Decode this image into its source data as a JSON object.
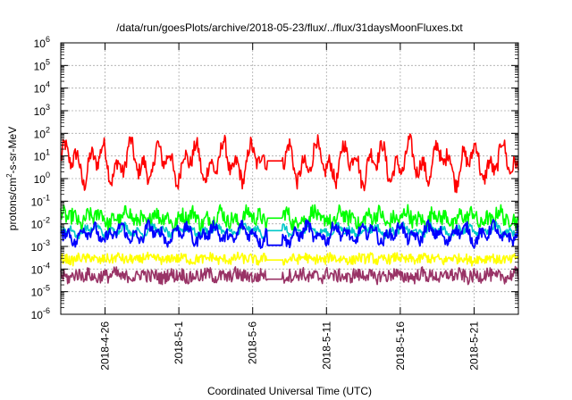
{
  "chart_data": {
    "type": "line",
    "title": "/data/run/goesPlots/archive/2018-05-23/flux/../flux/31daysMoonFluxes.txt",
    "xlabel": "Coordinated Universal Time (UTC)",
    "ylabel_prefix": "protons/cm",
    "ylabel_sup": "2",
    "ylabel_suffix": "-s-sr-MeV",
    "y_scale": "log",
    "ylim": [
      1e-06,
      1000000.0
    ],
    "xlim": [
      "2018-04-23",
      "2018-05-24"
    ],
    "grid": true,
    "y_ticks": [
      {
        "value": -6,
        "base": "10",
        "exp": "-6"
      },
      {
        "value": -5,
        "base": "10",
        "exp": "-5"
      },
      {
        "value": -4,
        "base": "10",
        "exp": "-4"
      },
      {
        "value": -3,
        "base": "10",
        "exp": "-3"
      },
      {
        "value": -2,
        "base": "10",
        "exp": "-2"
      },
      {
        "value": -1,
        "base": "10",
        "exp": "-1"
      },
      {
        "value": 0,
        "base": "10",
        "exp": "0"
      },
      {
        "value": 1,
        "base": "10",
        "exp": "1"
      },
      {
        "value": 2,
        "base": "10",
        "exp": "2"
      },
      {
        "value": 3,
        "base": "10",
        "exp": "3"
      },
      {
        "value": 4,
        "base": "10",
        "exp": "4"
      },
      {
        "value": 5,
        "base": "10",
        "exp": "5"
      },
      {
        "value": 6,
        "base": "10",
        "exp": "6"
      }
    ],
    "x_ticks": [
      {
        "date": "2018-04-26",
        "label": "2018-4-26"
      },
      {
        "date": "2018-05-01",
        "label": "2018-5-1"
      },
      {
        "date": "2018-05-06",
        "label": "2018-5-6"
      },
      {
        "date": "2018-05-11",
        "label": "2018-5-11"
      },
      {
        "date": "2018-05-16",
        "label": "2018-5-16"
      },
      {
        "date": "2018-05-21",
        "label": "2018-5-21"
      }
    ],
    "data_gap": [
      "2018-05-07",
      "2018-05-08"
    ],
    "series": [
      {
        "color": "#ff0000",
        "level": 0.7,
        "swing": 1.0,
        "noise": 0.35,
        "gap_level": 0.78,
        "width": 1.6
      },
      {
        "color": "#00ff00",
        "level": -1.75,
        "swing": 0.35,
        "noise": 0.35,
        "gap_level": -1.75,
        "width": 1.6
      },
      {
        "color": "#00c8c8",
        "level": -2.3,
        "swing": 0.25,
        "noise": 0.15,
        "gap_level": -2.3,
        "width": 1.6
      },
      {
        "color": "#0000ff",
        "level": -2.45,
        "swing": 0.45,
        "noise": 0.25,
        "gap_level": -2.95,
        "width": 1.8
      },
      {
        "color": "#ffff00",
        "level": -3.55,
        "swing": 0.1,
        "noise": 0.22,
        "gap_level": -3.6,
        "width": 1.6
      },
      {
        "color": "#993366",
        "level": -4.3,
        "swing": 0.12,
        "noise": 0.3,
        "gap_level": -4.45,
        "width": 1.6
      }
    ]
  }
}
